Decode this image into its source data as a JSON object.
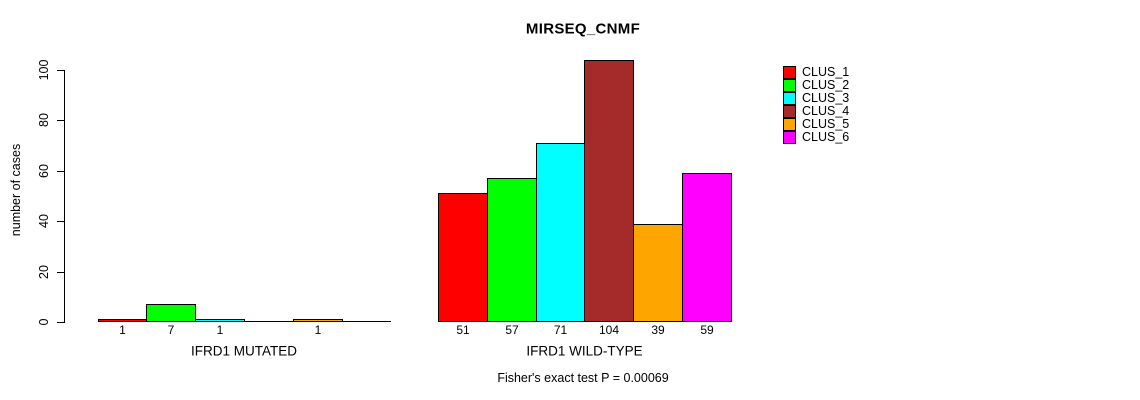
{
  "chart_data": {
    "type": "bar",
    "title": "MIRSEQ_CNMF",
    "ylabel": "number of cases",
    "xlabel": "",
    "annotation": "Fisher's exact test P = 0.00069",
    "ylim": [
      0,
      100
    ],
    "yticks": [
      "0",
      "20",
      "40",
      "60",
      "80",
      "100"
    ],
    "grid": false,
    "legend_position": "right",
    "categories": [
      "IFRD1 MUTATED",
      "IFRD1 WILD-TYPE"
    ],
    "series": [
      {
        "name": "CLUS_1",
        "color": "#FF0000",
        "values": [
          1,
          51
        ]
      },
      {
        "name": "CLUS_2",
        "color": "#00FF00",
        "values": [
          7,
          57
        ]
      },
      {
        "name": "CLUS_3",
        "color": "#00FFFF",
        "values": [
          1,
          71
        ]
      },
      {
        "name": "CLUS_4",
        "color": "#A52A2A",
        "values": [
          0,
          104
        ]
      },
      {
        "name": "CLUS_5",
        "color": "#FFA500",
        "values": [
          1,
          39
        ]
      },
      {
        "name": "CLUS_6",
        "color": "#FF00FF",
        "values": [
          0,
          59
        ]
      }
    ]
  }
}
